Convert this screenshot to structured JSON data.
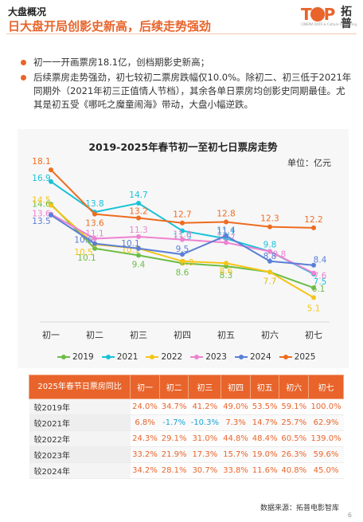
{
  "header": {
    "section": "大盘概况",
    "title": "日大盘开局创影史新高，后续走势强劲"
  },
  "logo": {
    "wordmark": "TOP",
    "name_cn": "拓普",
    "tagline": "CINEMA DATA & Culture Consulting"
  },
  "bullets": [
    "初一一开画票房18.1亿，创档期影史新高；",
    "后续票房走势强劲，初七较初二票房跌幅仅10.0%。除初二、初三低于2021年同期外（2021年初三正值情人节档），其余各单日票房均创影史同期最佳。尤其是初五受《哪吒之魔童闹海》带动，大盘小幅逆跌。"
  ],
  "chart_data": {
    "type": "line",
    "title": "2019-2025年春节初一至初七日票房走势",
    "unit": "单位：亿元",
    "categories": [
      "初一",
      "初二",
      "初三",
      "初四",
      "初五",
      "初六",
      "初七"
    ],
    "ylim": [
      4,
      19
    ],
    "grid": false,
    "legend_position": "bottom",
    "series": [
      {
        "name": "2019",
        "color": "#6cbd45",
        "values": [
          14.6,
          10.1,
          9.4,
          8.6,
          8.3,
          7.7,
          6.1
        ]
      },
      {
        "name": "2021",
        "color": "#19c2d8",
        "values": [
          16.9,
          13.8,
          14.7,
          11.9,
          11.1,
          9.8,
          7.5
        ]
      },
      {
        "name": "2022",
        "color": "#f5c518",
        "values": [
          14.5,
          10.5,
          10.1,
          8.8,
          8.6,
          7.7,
          5.1
        ]
      },
      {
        "name": "2023",
        "color": "#ee82d0",
        "values": [
          13.6,
          11.1,
          11.3,
          11.0,
          10.7,
          9.8,
          7.6
        ]
      },
      {
        "name": "2024",
        "color": "#5b7fd6",
        "values": [
          13.5,
          10.6,
          10.1,
          9.5,
          11.4,
          8.8,
          8.4
        ]
      },
      {
        "name": "2025",
        "color": "#ee6c1f",
        "values": [
          18.1,
          13.6,
          13.2,
          12.7,
          12.8,
          12.3,
          12.2
        ]
      }
    ]
  },
  "table": {
    "corner": "2025年春节日票房同比",
    "columns": [
      "初一",
      "初二",
      "初三",
      "初四",
      "初五",
      "初六",
      "初七"
    ],
    "rows": [
      {
        "label": "较2019年",
        "cells": [
          "24.0%",
          "34.7%",
          "41.2%",
          "49.0%",
          "53.5%",
          "59.1%",
          "100.0%"
        ]
      },
      {
        "label": "较2021年",
        "cells": [
          "6.8%",
          "-1.7%",
          "-10.3%",
          "7.3%",
          "14.7%",
          "25.7%",
          "62.9%"
        ]
      },
      {
        "label": "较2022年",
        "cells": [
          "24.3%",
          "29.1%",
          "31.0%",
          "44.8%",
          "48.4%",
          "60.5%",
          "139.0%"
        ]
      },
      {
        "label": "较2023年",
        "cells": [
          "33.2%",
          "21.9%",
          "17.3%",
          "15.7%",
          "19.0%",
          "26.3%",
          "59.6%"
        ]
      },
      {
        "label": "较2024年",
        "cells": [
          "34.2%",
          "28.1%",
          "30.7%",
          "33.8%",
          "11.6%",
          "40.8%",
          "45.0%"
        ]
      }
    ]
  },
  "footer": {
    "source": "数据来源：拓普电影智库",
    "page": "6"
  }
}
